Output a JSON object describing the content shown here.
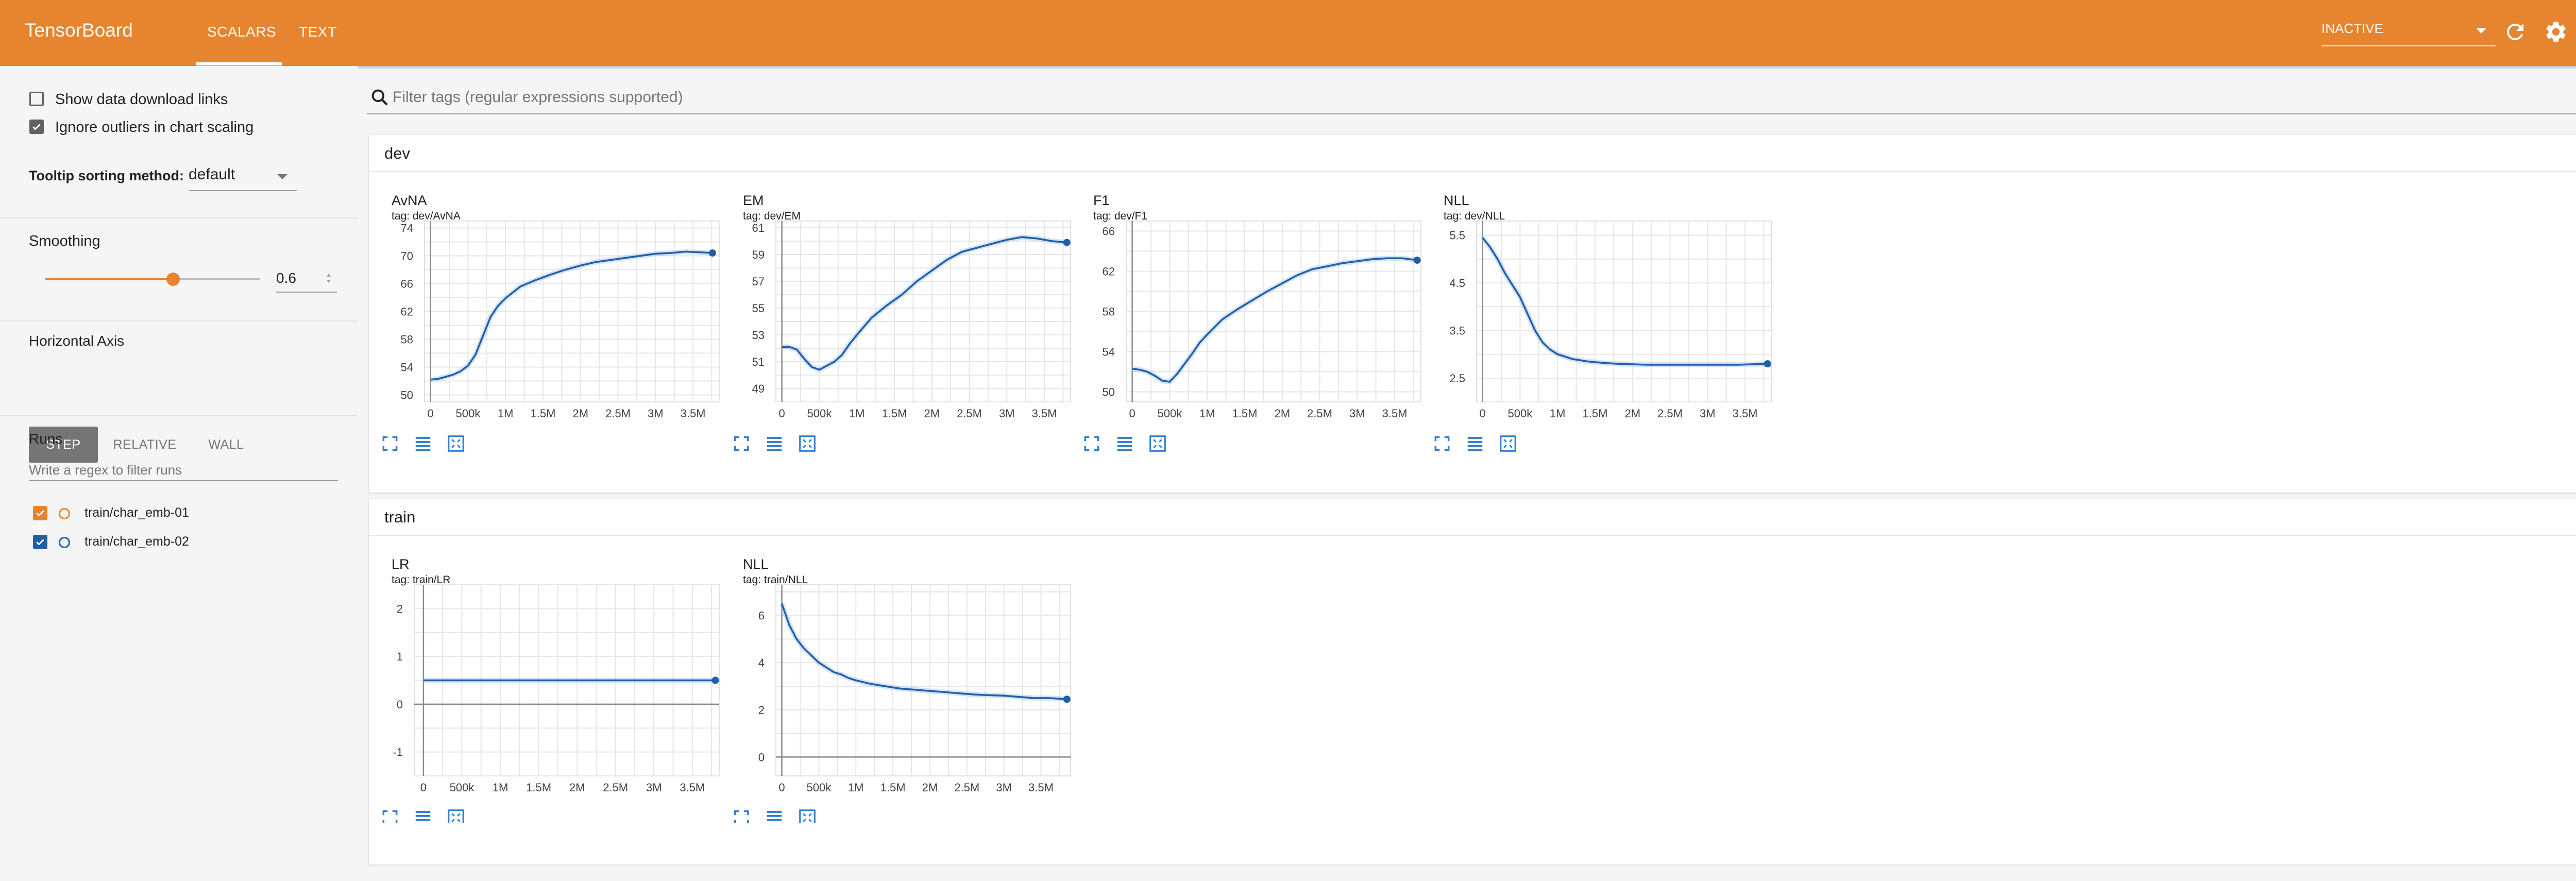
{
  "app": {
    "title": "TensorBoard",
    "tabs": [
      "SCALARS",
      "TEXT"
    ],
    "active_tab": "SCALARS"
  },
  "colors": {
    "accent": "#e6842f",
    "series_line": "#1f5ea8",
    "run_1": "#e6842f",
    "run_2": "#1f5ea8"
  },
  "topbar": {
    "run_state": "INACTIVE",
    "icons": [
      "refresh-icon",
      "settings-icon",
      "help-icon"
    ]
  },
  "sidebar": {
    "show_download_links": {
      "label": "Show data download links",
      "checked": false
    },
    "ignore_outliers": {
      "label": "Ignore outliers in chart scaling",
      "checked": true
    },
    "tooltip_sorting": {
      "label": "Tooltip sorting method:",
      "value": "default"
    },
    "smoothing": {
      "label": "Smoothing",
      "value": "0.6"
    },
    "horizontal_axis": {
      "label": "Horizontal Axis",
      "options": [
        "STEP",
        "RELATIVE",
        "WALL"
      ],
      "selected": "STEP"
    },
    "runs": {
      "label": "Runs",
      "filter_placeholder": "Write a regex to filter runs",
      "items": [
        {
          "name": "train/char_emb-01",
          "checked": true
        },
        {
          "name": "train/char_emb-02",
          "checked": true
        }
      ]
    }
  },
  "main": {
    "filter_placeholder": "Filter tags (regular expressions supported)",
    "sections": [
      {
        "name": "dev",
        "count": "4",
        "charts": [
          {
            "title": "AvNA",
            "tag": "tag: dev/AvNA",
            "x_ticks": [
              "0",
              "500k",
              "1M",
              "1.5M",
              "2M",
              "2.5M",
              "3M",
              "3.5M"
            ],
            "y_ticks": [
              "50",
              "54",
              "58",
              "62",
              "66",
              "70",
              "74"
            ],
            "ylim": [
              49,
              75
            ]
          },
          {
            "title": "EM",
            "tag": "tag: dev/EM",
            "x_ticks": [
              "0",
              "500k",
              "1M",
              "1.5M",
              "2M",
              "2.5M",
              "3M",
              "3.5M"
            ],
            "y_ticks": [
              "49",
              "51",
              "53",
              "55",
              "57",
              "59",
              "61"
            ],
            "ylim": [
              48,
              61.5
            ]
          },
          {
            "title": "F1",
            "tag": "tag: dev/F1",
            "x_ticks": [
              "0",
              "500k",
              "1M",
              "1.5M",
              "2M",
              "2.5M",
              "3M",
              "3.5M"
            ],
            "y_ticks": [
              "50",
              "54",
              "58",
              "62",
              "66"
            ],
            "ylim": [
              49,
              67
            ]
          },
          {
            "title": "NLL",
            "tag": "tag: dev/NLL",
            "x_ticks": [
              "0",
              "500k",
              "1M",
              "1.5M",
              "2M",
              "2.5M",
              "3M",
              "3.5M"
            ],
            "y_ticks": [
              "2.5",
              "3.5",
              "4.5",
              "5.5"
            ],
            "ylim": [
              2.0,
              5.8
            ]
          }
        ]
      },
      {
        "name": "train",
        "count": "2",
        "charts": [
          {
            "title": "LR",
            "tag": "tag: train/LR",
            "x_ticks": [
              "0",
              "500k",
              "1M",
              "1.5M",
              "2M",
              "2.5M",
              "3M",
              "3.5M"
            ],
            "y_ticks": [
              "-1",
              "0",
              "1",
              "2"
            ],
            "ylim": [
              -1.5,
              2.5
            ]
          },
          {
            "title": "NLL",
            "tag": "tag: train/NLL",
            "x_ticks": [
              "0",
              "500k",
              "1M",
              "1.5M",
              "2M",
              "2.5M",
              "3M",
              "3.5M"
            ],
            "y_ticks": [
              "0",
              "2",
              "4",
              "6"
            ],
            "ylim": [
              -0.8,
              7.3
            ]
          }
        ]
      }
    ]
  },
  "chart_data": [
    {
      "type": "line",
      "title": "AvNA",
      "xlim": [
        -80000,
        3850000
      ],
      "ylim": [
        49,
        75
      ],
      "x_ticks": [
        0,
        500000,
        1000000,
        1500000,
        2000000,
        2500000,
        3000000,
        3500000
      ],
      "series": [
        {
          "x": [
            0,
            100000,
            200000,
            300000,
            400000,
            500000,
            600000,
            700000,
            800000,
            900000,
            1000000,
            1200000,
            1400000,
            1600000,
            1800000,
            2000000,
            2200000,
            2400000,
            2600000,
            2800000,
            3000000,
            3200000,
            3400000,
            3600000,
            3760000
          ],
          "y": [
            52.2,
            52.3,
            52.6,
            52.9,
            53.4,
            54.2,
            55.8,
            58.5,
            61.2,
            62.8,
            63.9,
            65.6,
            66.5,
            67.3,
            68.0,
            68.6,
            69.1,
            69.4,
            69.7,
            70.0,
            70.3,
            70.4,
            70.6,
            70.5,
            70.4
          ]
        }
      ]
    },
    {
      "type": "line",
      "title": "EM",
      "xlim": [
        -80000,
        3850000
      ],
      "ylim": [
        48,
        61.5
      ],
      "x_ticks": [
        0,
        500000,
        1000000,
        1500000,
        2000000,
        2500000,
        3000000,
        3500000
      ],
      "series": [
        {
          "x": [
            0,
            100000,
            200000,
            300000,
            400000,
            500000,
            600000,
            700000,
            800000,
            900000,
            1000000,
            1200000,
            1400000,
            1600000,
            1800000,
            2000000,
            2200000,
            2400000,
            2600000,
            2800000,
            3000000,
            3200000,
            3400000,
            3600000,
            3800000
          ],
          "y": [
            52.1,
            52.1,
            51.9,
            51.2,
            50.6,
            50.4,
            50.7,
            51.0,
            51.5,
            52.3,
            53.0,
            54.3,
            55.2,
            56.0,
            57.0,
            57.8,
            58.6,
            59.2,
            59.5,
            59.8,
            60.1,
            60.3,
            60.2,
            60.0,
            59.9
          ]
        }
      ]
    },
    {
      "type": "line",
      "title": "F1",
      "xlim": [
        -80000,
        3850000
      ],
      "ylim": [
        49,
        67
      ],
      "x_ticks": [
        0,
        500000,
        1000000,
        1500000,
        2000000,
        2500000,
        3000000,
        3500000
      ],
      "series": [
        {
          "x": [
            0,
            100000,
            200000,
            300000,
            400000,
            500000,
            600000,
            700000,
            800000,
            900000,
            1000000,
            1200000,
            1400000,
            1600000,
            1800000,
            2000000,
            2200000,
            2400000,
            2600000,
            2800000,
            3000000,
            3200000,
            3400000,
            3600000,
            3800000
          ],
          "y": [
            52.3,
            52.2,
            52.0,
            51.6,
            51.1,
            51.0,
            51.8,
            52.8,
            53.8,
            54.9,
            55.7,
            57.2,
            58.2,
            59.1,
            60.0,
            60.8,
            61.6,
            62.2,
            62.5,
            62.8,
            63.0,
            63.2,
            63.3,
            63.3,
            63.1
          ]
        }
      ]
    },
    {
      "type": "line",
      "title": "NLL",
      "xlim": [
        -80000,
        3850000
      ],
      "ylim": [
        2.0,
        5.8
      ],
      "x_ticks": [
        0,
        500000,
        1000000,
        1500000,
        2000000,
        2500000,
        3000000,
        3500000
      ],
      "series": [
        {
          "x": [
            0,
            100000,
            200000,
            300000,
            400000,
            500000,
            600000,
            700000,
            800000,
            900000,
            1000000,
            1200000,
            1400000,
            1600000,
            1800000,
            2000000,
            2200000,
            2400000,
            2600000,
            2800000,
            3000000,
            3200000,
            3400000,
            3600000,
            3800000
          ],
          "y": [
            5.45,
            5.25,
            5.0,
            4.7,
            4.45,
            4.2,
            3.85,
            3.5,
            3.25,
            3.1,
            3.0,
            2.9,
            2.85,
            2.82,
            2.8,
            2.79,
            2.78,
            2.78,
            2.78,
            2.78,
            2.78,
            2.78,
            2.78,
            2.79,
            2.8
          ]
        }
      ]
    },
    {
      "type": "line",
      "title": "LR",
      "xlim": [
        -120000,
        3850000
      ],
      "ylim": [
        -1.5,
        2.5
      ],
      "x_ticks": [
        0,
        500000,
        1000000,
        1500000,
        2000000,
        2500000,
        3000000,
        3500000
      ],
      "series": [
        {
          "x": [
            0,
            3800000
          ],
          "y": [
            0.5,
            0.5
          ]
        }
      ]
    },
    {
      "type": "line",
      "title": "NLL",
      "xlim": [
        -80000,
        3900000
      ],
      "ylim": [
        -0.8,
        7.3
      ],
      "x_ticks": [
        0,
        500000,
        1000000,
        1500000,
        2000000,
        2500000,
        3000000,
        3500000
      ],
      "series": [
        {
          "x": [
            0,
            100000,
            200000,
            300000,
            400000,
            500000,
            600000,
            700000,
            800000,
            900000,
            1000000,
            1200000,
            1400000,
            1600000,
            1800000,
            2000000,
            2200000,
            2400000,
            2600000,
            2800000,
            3000000,
            3200000,
            3400000,
            3600000,
            3850000
          ],
          "y": [
            6.5,
            5.6,
            5.0,
            4.6,
            4.3,
            4.0,
            3.8,
            3.6,
            3.5,
            3.35,
            3.25,
            3.1,
            3.0,
            2.9,
            2.85,
            2.8,
            2.75,
            2.7,
            2.65,
            2.62,
            2.6,
            2.55,
            2.5,
            2.5,
            2.45
          ]
        }
      ]
    }
  ]
}
